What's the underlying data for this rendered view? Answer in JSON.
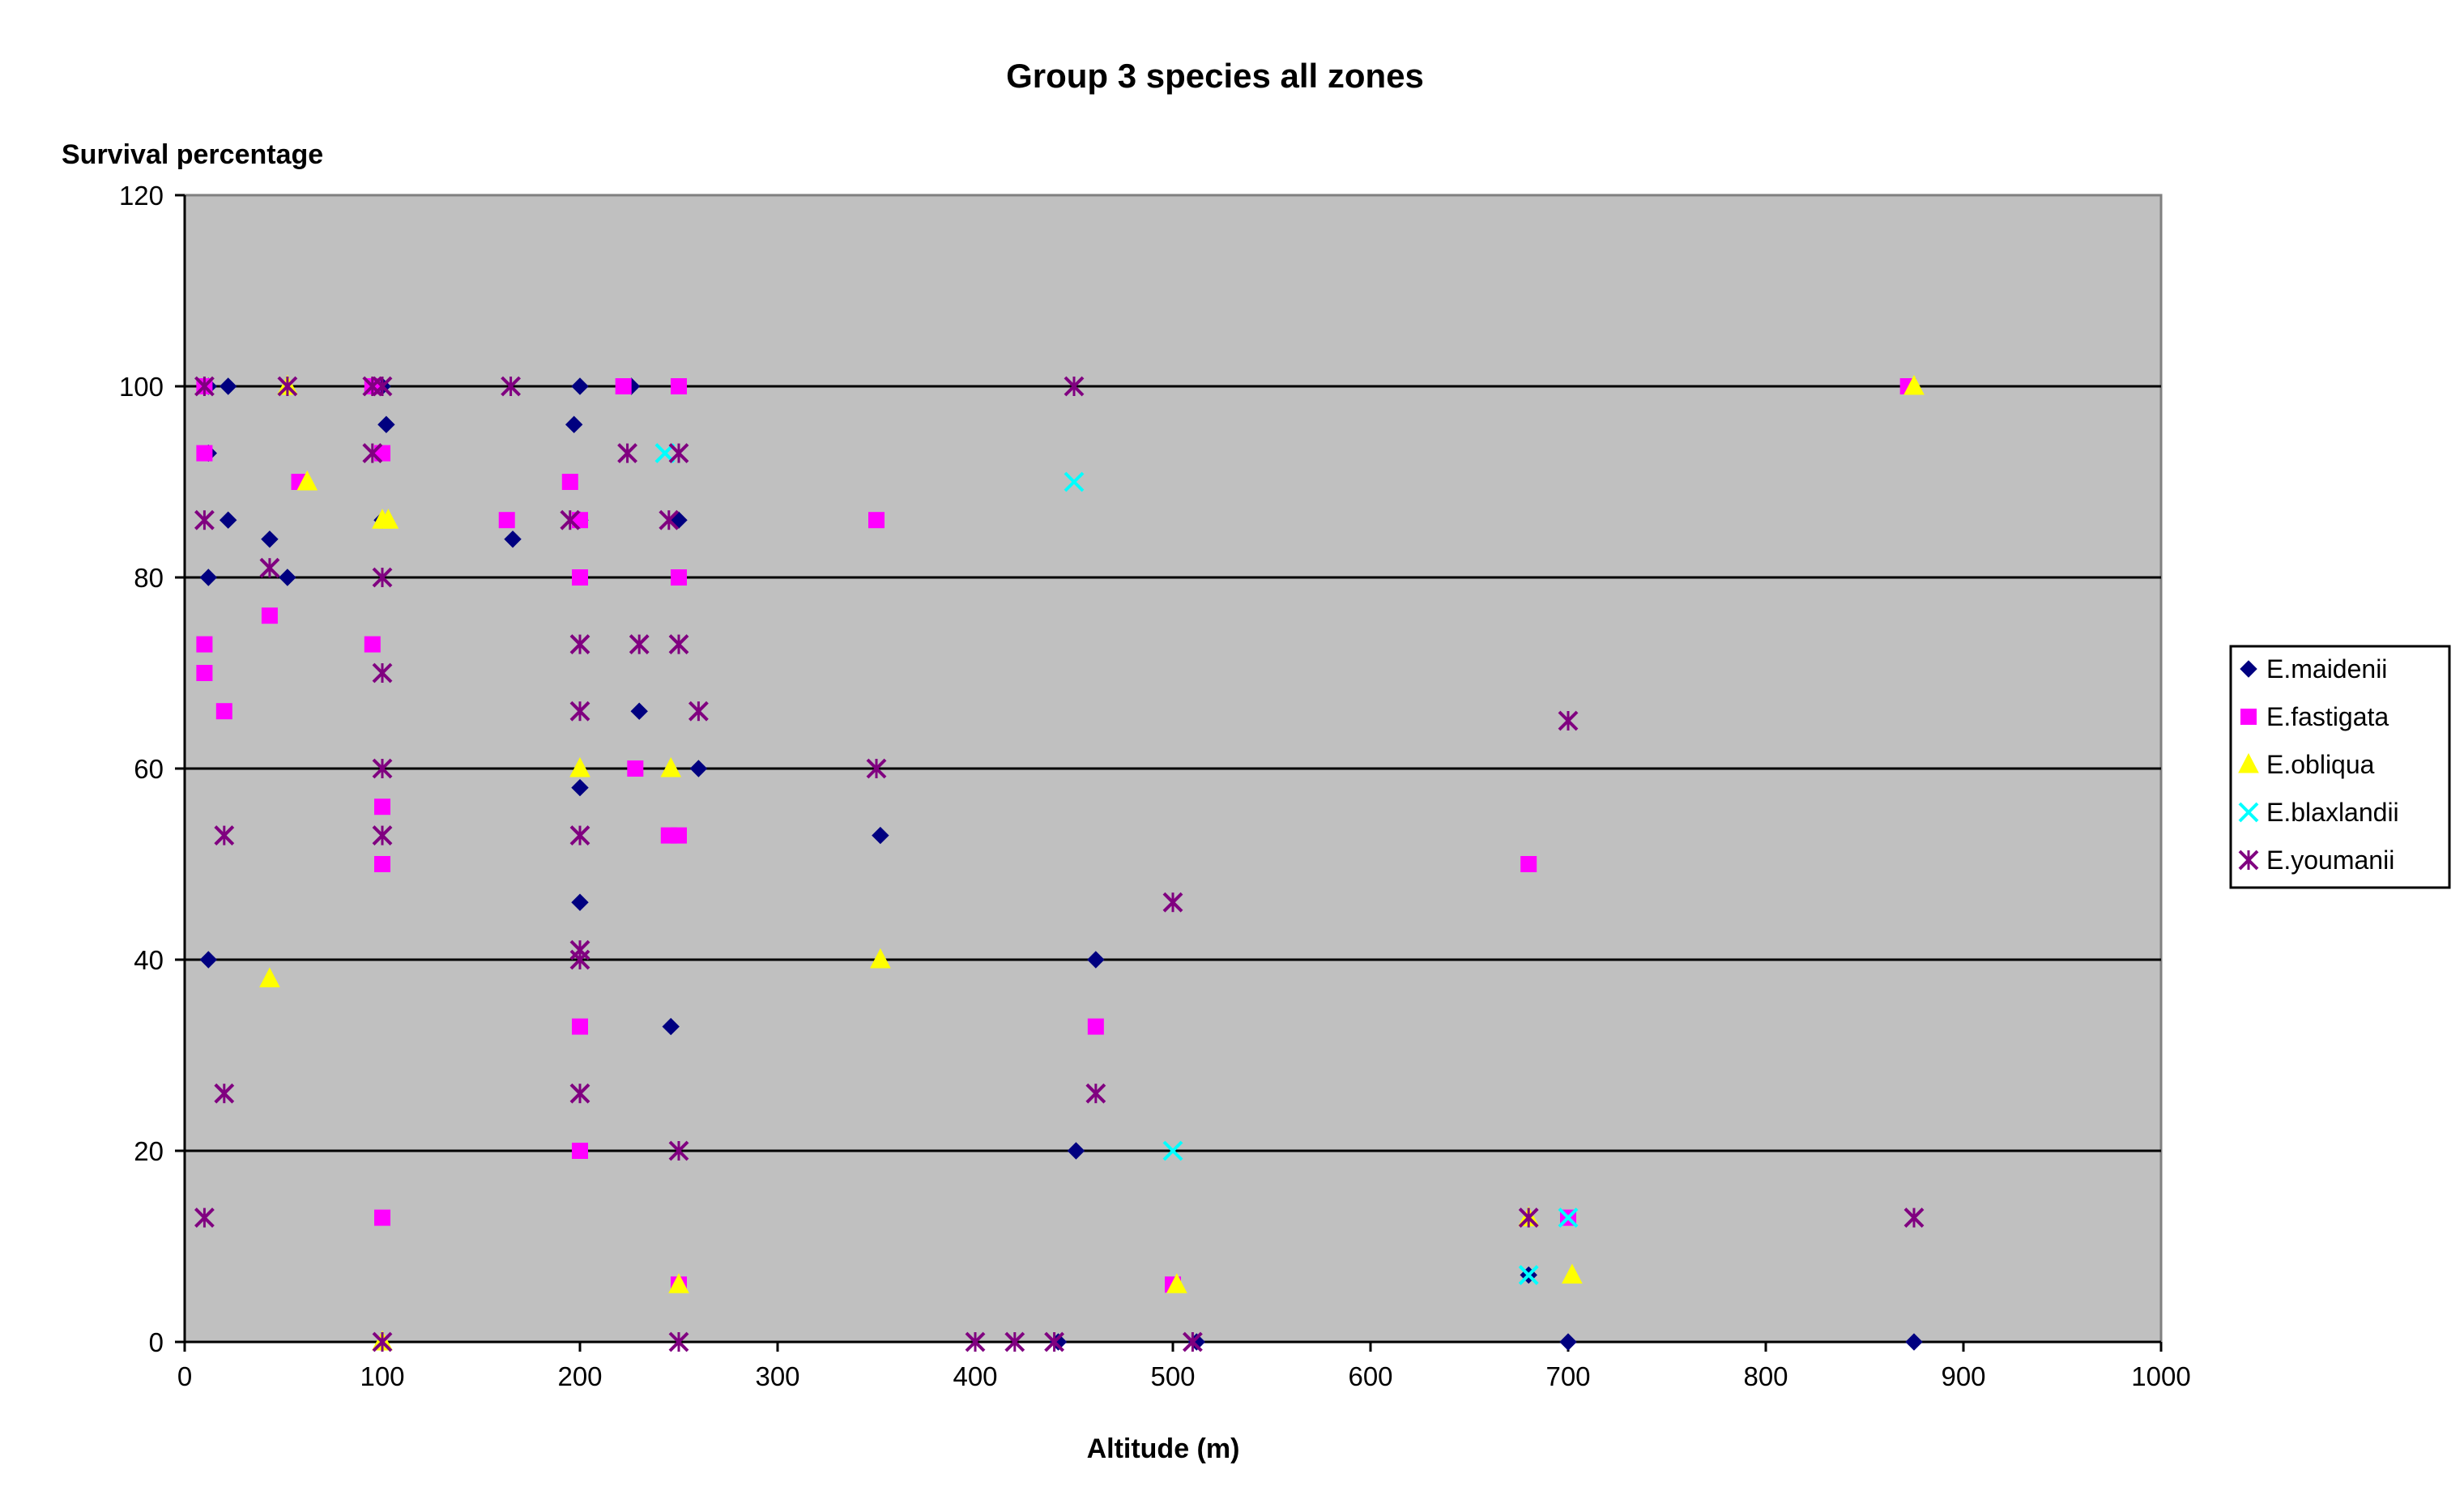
{
  "chart_data": {
    "type": "scatter",
    "title": "Group 3 species all zones",
    "xlabel": "Altitude (m)",
    "ylabel": "Survival percentage",
    "xlim": [
      0,
      1000
    ],
    "ylim": [
      0,
      120
    ],
    "xticks": [
      0,
      100,
      200,
      300,
      400,
      500,
      600,
      700,
      800,
      900,
      1000
    ],
    "yticks": [
      0,
      20,
      40,
      60,
      80,
      100,
      120
    ],
    "grid": "horizontal major gridlines",
    "legend_position": "right",
    "plot_background": "#c0c0c0",
    "series": [
      {
        "name": "E.maidenii",
        "marker": "diamond",
        "color": "#000080",
        "points": [
          [
            12,
            100
          ],
          [
            22,
            100
          ],
          [
            12,
            93
          ],
          [
            22,
            86
          ],
          [
            43,
            84
          ],
          [
            12,
            80
          ],
          [
            52,
            80
          ],
          [
            12,
            40
          ],
          [
            100,
            100
          ],
          [
            102,
            96
          ],
          [
            100,
            86
          ],
          [
            166,
            84
          ],
          [
            200,
            100
          ],
          [
            197,
            96
          ],
          [
            200,
            86
          ],
          [
            226,
            100
          ],
          [
            250,
            86
          ],
          [
            230,
            66
          ],
          [
            260,
            60
          ],
          [
            200,
            58
          ],
          [
            200,
            46
          ],
          [
            246,
            33
          ],
          [
            352,
            53
          ],
          [
            461,
            40
          ],
          [
            451,
            20
          ],
          [
            442,
            0
          ],
          [
            512,
            0
          ],
          [
            680,
            7
          ],
          [
            700,
            0
          ],
          [
            875,
            0
          ]
        ]
      },
      {
        "name": "E.fastigata",
        "marker": "square",
        "color": "#ff00ff",
        "points": [
          [
            10,
            100
          ],
          [
            10,
            93
          ],
          [
            58,
            90
          ],
          [
            10,
            73
          ],
          [
            10,
            70
          ],
          [
            20,
            66
          ],
          [
            43,
            76
          ],
          [
            95,
            100
          ],
          [
            100,
            93
          ],
          [
            95,
            73
          ],
          [
            100,
            56
          ],
          [
            100,
            50
          ],
          [
            100,
            13
          ],
          [
            163,
            86
          ],
          [
            195,
            90
          ],
          [
            200,
            86
          ],
          [
            200,
            80
          ],
          [
            228,
            60
          ],
          [
            222,
            100
          ],
          [
            250,
            100
          ],
          [
            250,
            80
          ],
          [
            245,
            53
          ],
          [
            250,
            53
          ],
          [
            200,
            33
          ],
          [
            200,
            20
          ],
          [
            250,
            6
          ],
          [
            350,
            86
          ],
          [
            461,
            33
          ],
          [
            500,
            6
          ],
          [
            680,
            50
          ],
          [
            700,
            13
          ],
          [
            872,
            100
          ]
        ]
      },
      {
        "name": "E.obliqua",
        "marker": "triangle",
        "color": "#ffff00",
        "points": [
          [
            52,
            100
          ],
          [
            62,
            90
          ],
          [
            43,
            38
          ],
          [
            100,
            86
          ],
          [
            103,
            86
          ],
          [
            100,
            0
          ],
          [
            200,
            60
          ],
          [
            246,
            60
          ],
          [
            250,
            6
          ],
          [
            352,
            40
          ],
          [
            502,
            6
          ],
          [
            680,
            13
          ],
          [
            702,
            7
          ],
          [
            875,
            100
          ]
        ]
      },
      {
        "name": "E.blaxlandii",
        "marker": "x",
        "color": "#00ffff",
        "points": [
          [
            243,
            93
          ],
          [
            450,
            90
          ],
          [
            500,
            20
          ],
          [
            680,
            7
          ],
          [
            700,
            13
          ]
        ]
      },
      {
        "name": "E.youmanii",
        "marker": "star",
        "color": "#800080",
        "points": [
          [
            10,
            100
          ],
          [
            52,
            100
          ],
          [
            10,
            86
          ],
          [
            43,
            81
          ],
          [
            20,
            53
          ],
          [
            20,
            26
          ],
          [
            10,
            13
          ],
          [
            95,
            100
          ],
          [
            100,
            100
          ],
          [
            95,
            93
          ],
          [
            100,
            80
          ],
          [
            100,
            70
          ],
          [
            100,
            60
          ],
          [
            100,
            53
          ],
          [
            100,
            0
          ],
          [
            165,
            100
          ],
          [
            195,
            86
          ],
          [
            200,
            73
          ],
          [
            200,
            66
          ],
          [
            200,
            53
          ],
          [
            200,
            41
          ],
          [
            200,
            40
          ],
          [
            200,
            26
          ],
          [
            224,
            93
          ],
          [
            250,
            93
          ],
          [
            245,
            86
          ],
          [
            230,
            73
          ],
          [
            250,
            73
          ],
          [
            260,
            66
          ],
          [
            250,
            20
          ],
          [
            250,
            0
          ],
          [
            350,
            60
          ],
          [
            400,
            0
          ],
          [
            420,
            0
          ],
          [
            440,
            0
          ],
          [
            450,
            100
          ],
          [
            461,
            26
          ],
          [
            500,
            46
          ],
          [
            510,
            0
          ],
          [
            680,
            13
          ],
          [
            700,
            65
          ],
          [
            875,
            13
          ]
        ]
      }
    ]
  }
}
